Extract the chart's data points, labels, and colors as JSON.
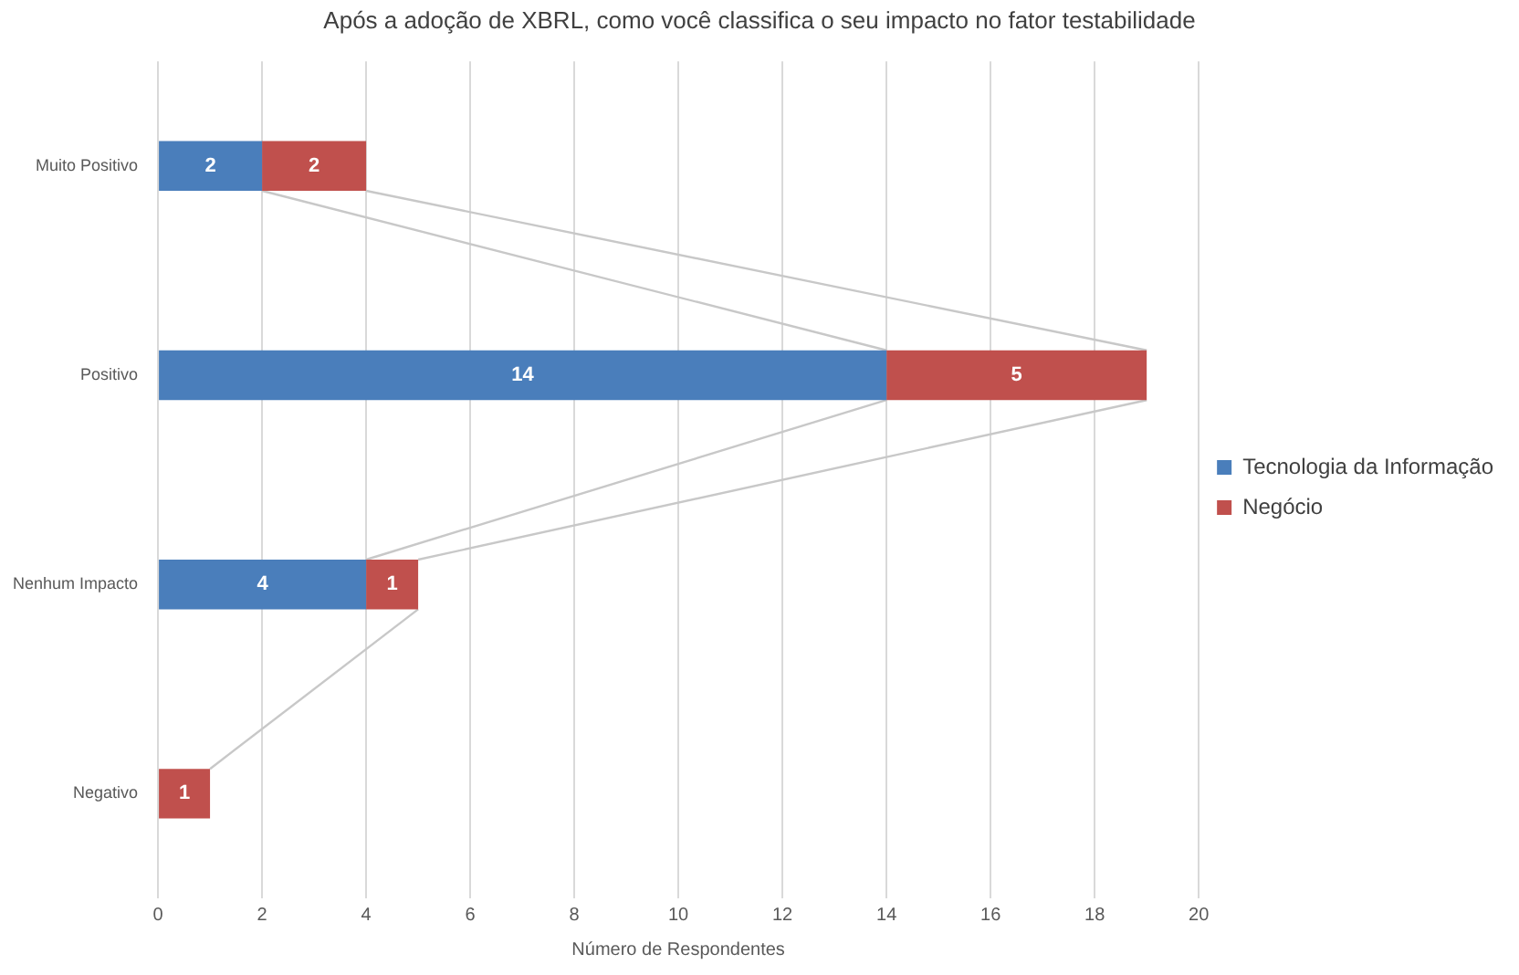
{
  "chart_data": {
    "type": "bar",
    "orientation": "horizontal",
    "stacked": true,
    "title": "Após a adoção de XBRL, como você classifica o seu impacto no fator testabilidade",
    "xlabel": "Número de Respondentes",
    "categories": [
      "Muito Positivo",
      "Positivo",
      "Nenhum Impacto",
      "Negativo"
    ],
    "series": [
      {
        "name": "Tecnologia da Informação",
        "color": "#4a7ebb",
        "values": [
          2,
          14,
          4,
          null
        ]
      },
      {
        "name": "Negócio",
        "color": "#c0504d",
        "values": [
          2,
          5,
          1,
          1
        ]
      }
    ],
    "xlim": [
      0,
      20
    ],
    "xticks": [
      0,
      2,
      4,
      6,
      8,
      10,
      12,
      14,
      16,
      18,
      20
    ],
    "grid": "x",
    "legend": "right",
    "data_labels": true
  }
}
